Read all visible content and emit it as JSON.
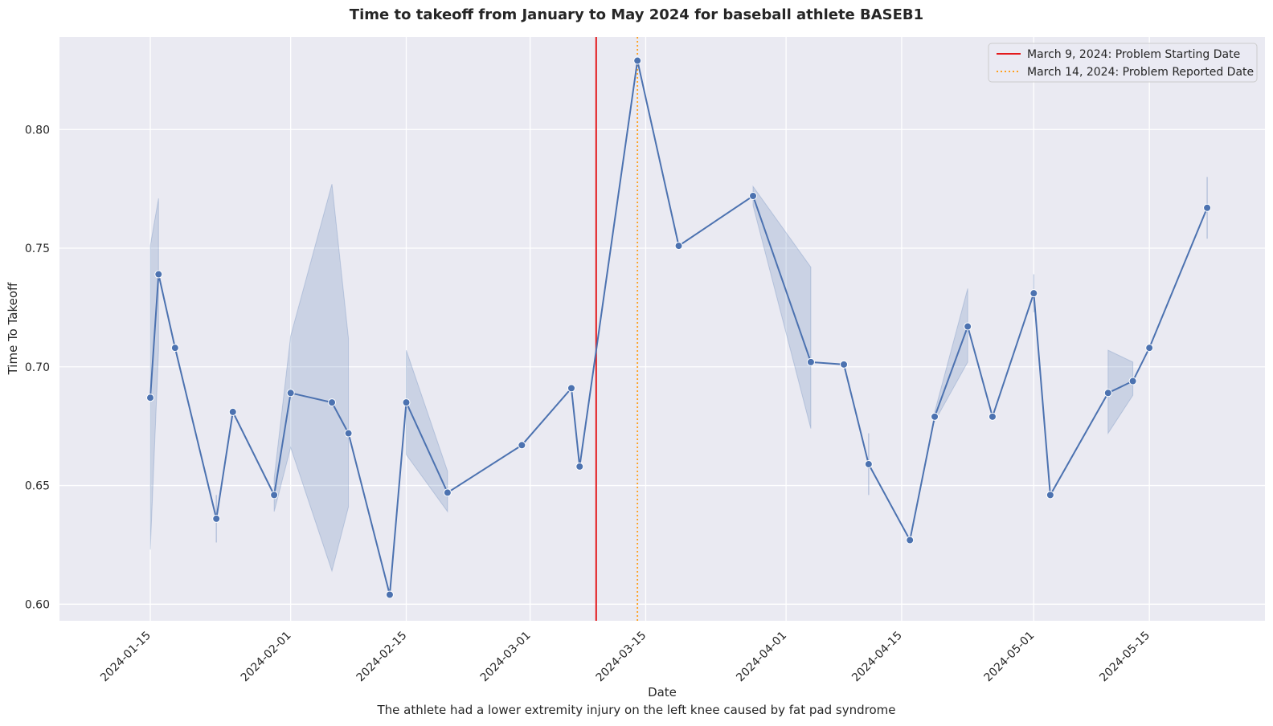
{
  "chart_data": {
    "type": "line",
    "title": "Time to takeoff from January to May 2024 for baseball athlete BASEB1",
    "xlabel": "Date",
    "ylabel": "Time To Takeoff",
    "caption": "The athlete had a lower extremity injury on the left knee caused by fat pad syndrome",
    "xlim": [
      "2024-01-04",
      "2024-05-29"
    ],
    "ylim": [
      0.593,
      0.839
    ],
    "x_ticks": [
      "2024-01-15",
      "2024-02-01",
      "2024-02-15",
      "2024-03-01",
      "2024-03-15",
      "2024-04-01",
      "2024-04-15",
      "2024-05-01",
      "2024-05-15"
    ],
    "y_ticks": [
      0.6,
      0.65,
      0.7,
      0.75,
      0.8
    ],
    "grid": true,
    "legend_position": "top-right",
    "series": [
      {
        "color": "#4c72b0",
        "points": [
          {
            "x": "2024-01-15",
            "y": 0.687,
            "lo": 0.623,
            "hi": 0.751
          },
          {
            "x": "2024-01-16",
            "y": 0.739,
            "lo": 0.707,
            "hi": 0.771
          },
          {
            "x": "2024-01-18",
            "y": 0.708
          },
          {
            "x": "2024-01-23",
            "y": 0.636,
            "lo": 0.626,
            "hi": 0.646
          },
          {
            "x": "2024-01-25",
            "y": 0.681
          },
          {
            "x": "2024-01-30",
            "y": 0.646,
            "lo": 0.639,
            "hi": 0.653
          },
          {
            "x": "2024-02-01",
            "y": 0.689,
            "lo": 0.666,
            "hi": 0.713
          },
          {
            "x": "2024-02-06",
            "y": 0.685,
            "lo": 0.614,
            "hi": 0.777
          },
          {
            "x": "2024-02-08",
            "y": 0.672,
            "lo": 0.641,
            "hi": 0.712
          },
          {
            "x": "2024-02-13",
            "y": 0.604
          },
          {
            "x": "2024-02-15",
            "y": 0.685,
            "lo": 0.663,
            "hi": 0.707
          },
          {
            "x": "2024-02-20",
            "y": 0.647,
            "lo": 0.639,
            "hi": 0.656
          },
          {
            "x": "2024-02-29",
            "y": 0.667
          },
          {
            "x": "2024-03-06",
            "y": 0.691
          },
          {
            "x": "2024-03-07",
            "y": 0.658
          },
          {
            "x": "2024-03-14",
            "y": 0.829
          },
          {
            "x": "2024-03-19",
            "y": 0.751
          },
          {
            "x": "2024-03-28",
            "y": 0.772,
            "lo": 0.768,
            "hi": 0.776
          },
          {
            "x": "2024-04-04",
            "y": 0.702,
            "lo": 0.674,
            "hi": 0.742
          },
          {
            "x": "2024-04-08",
            "y": 0.701
          },
          {
            "x": "2024-04-11",
            "y": 0.659,
            "lo": 0.646,
            "hi": 0.672
          },
          {
            "x": "2024-04-16",
            "y": 0.627
          },
          {
            "x": "2024-04-19",
            "y": 0.679,
            "lo": 0.677,
            "hi": 0.681
          },
          {
            "x": "2024-04-23",
            "y": 0.717,
            "lo": 0.702,
            "hi": 0.733
          },
          {
            "x": "2024-04-26",
            "y": 0.679
          },
          {
            "x": "2024-05-01",
            "y": 0.731,
            "lo": 0.723,
            "hi": 0.739
          },
          {
            "x": "2024-05-03",
            "y": 0.646
          },
          {
            "x": "2024-05-10",
            "y": 0.689,
            "lo": 0.672,
            "hi": 0.707
          },
          {
            "x": "2024-05-13",
            "y": 0.694,
            "lo": 0.688,
            "hi": 0.702
          },
          {
            "x": "2024-05-15",
            "y": 0.708
          },
          {
            "x": "2024-05-22",
            "y": 0.767,
            "lo": 0.754,
            "hi": 0.78
          }
        ]
      }
    ],
    "vlines": [
      {
        "x": "2024-03-09",
        "label": "March 9, 2024: Problem Starting Date",
        "color": "#e31a1c",
        "style": "solid"
      },
      {
        "x": "2024-03-14",
        "label": "March 14, 2024: Problem Reported Date",
        "color": "#ff9f1c",
        "style": "dotted"
      }
    ],
    "colors": {
      "plot_bg": "#eaeaf2",
      "grid": "#ffffff",
      "line": "#4c72b0",
      "band": "#4c72b0"
    }
  }
}
